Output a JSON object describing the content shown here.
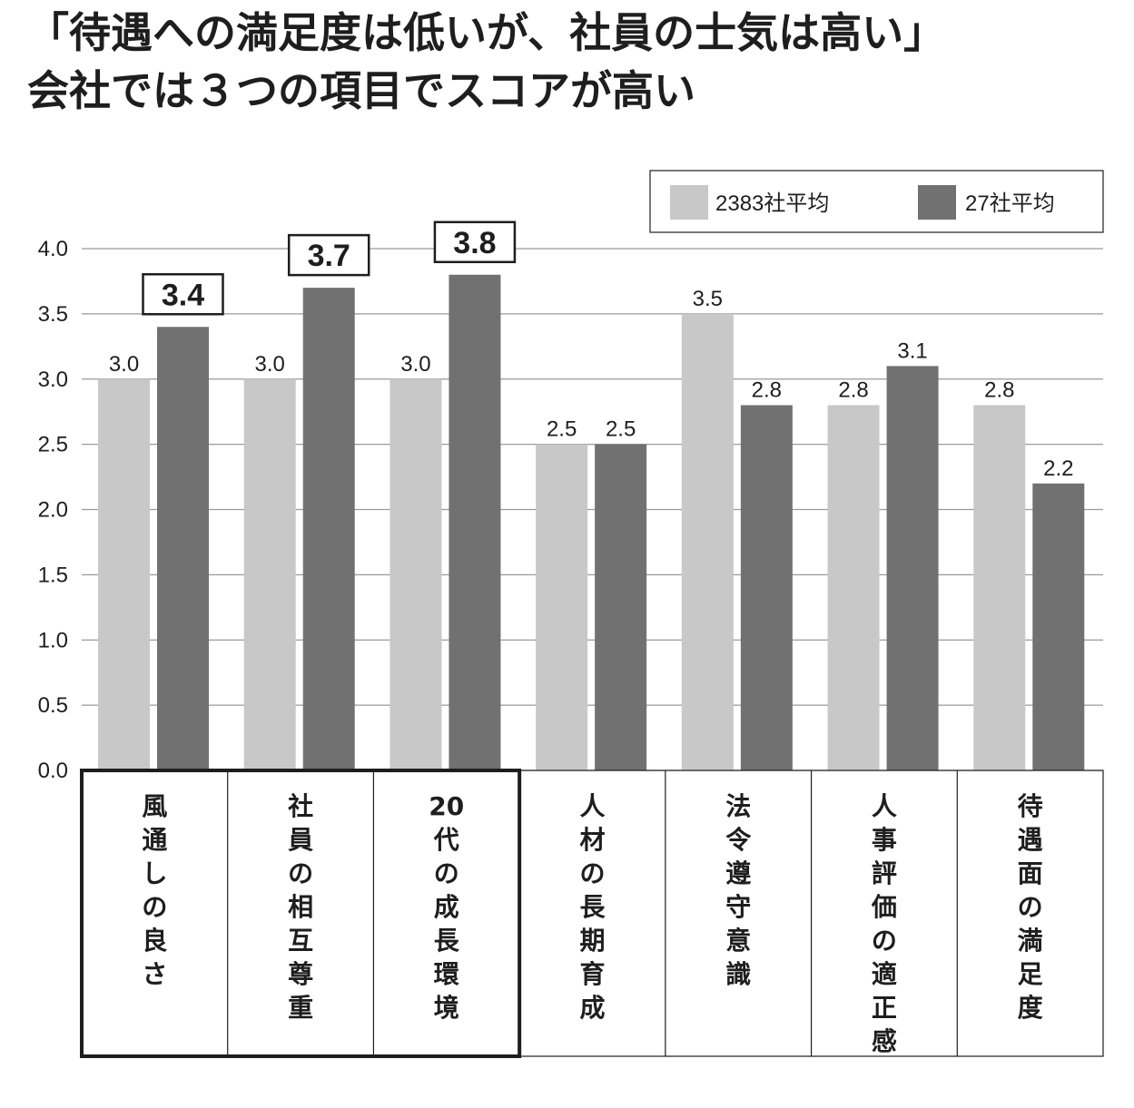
{
  "title": {
    "line1": "「待遇への満足度は低いが、社員の士気は高い」",
    "line2": "会社では３つの項目でスコアが高い"
  },
  "chart_data": {
    "type": "bar",
    "categories": [
      "風通しの良さ",
      "社員の相互尊重",
      "20代の成長環境",
      "人材の長期育成",
      "法令遵守意識",
      "人事評価の適正感",
      "待遇面の満足度"
    ],
    "series": [
      {
        "name": "2383社平均",
        "values": [
          3.0,
          3.0,
          3.0,
          2.5,
          3.5,
          2.8,
          2.8
        ],
        "color": "#c8c8c8"
      },
      {
        "name": "27社平均",
        "values": [
          3.4,
          3.7,
          3.8,
          2.5,
          2.8,
          3.1,
          2.2
        ],
        "color": "#717171"
      }
    ],
    "highlighted_categories": [
      0,
      1,
      2
    ],
    "ylim": [
      0,
      4.0
    ],
    "yticks": [
      "0.0",
      "0.5",
      "1.0",
      "1.5",
      "2.0",
      "2.5",
      "3.0",
      "3.5",
      "4.0"
    ],
    "grid": true,
    "legend_position": "top-right",
    "xlabel": "",
    "ylabel": ""
  }
}
